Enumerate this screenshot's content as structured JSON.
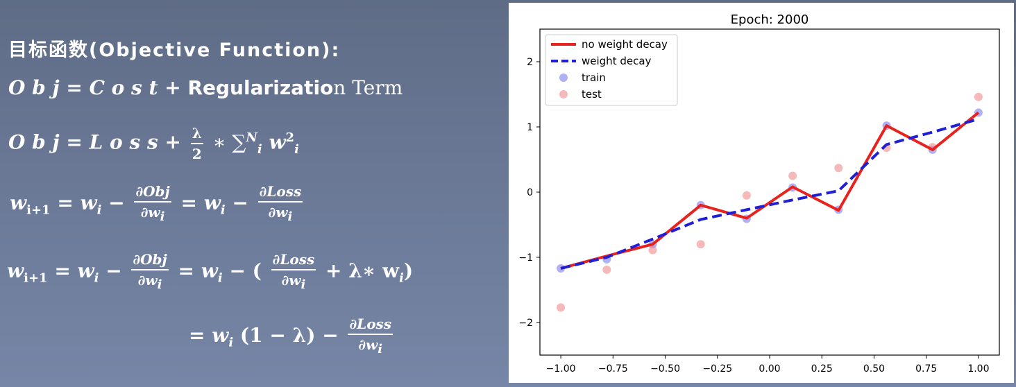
{
  "slide": {
    "title": "目标函数(Objective Function):",
    "eq1": {
      "lhs": "O b j",
      "op1": "=",
      "cost": "C o s t",
      "plus": "+",
      "reg": "Regularizatio",
      "tail": "n Term"
    },
    "eq2": {
      "lhs": "O b j",
      "op1": "=",
      "loss": "L o s s",
      "plus": "+",
      "frac_num": "λ",
      "frac_den": "2",
      "rest": "∗ ∑",
      "sum_sup": "N",
      "sum_sub": "i",
      "w": "w",
      "w_sup": "2",
      "w_sub": "i"
    },
    "eq3": {
      "w": "w",
      "sub_lhs": "i+1",
      "eq": "=",
      "wi": "w",
      "sub_i": "i",
      "minus": "−",
      "num1": "∂Obj",
      "den1": "∂w",
      "den_sub": "i",
      "eq2": "=",
      "minus2": "−",
      "num2": "∂Loss",
      "den2": "∂w"
    },
    "eq4": {
      "w": "w",
      "sub_lhs": "i+1",
      "eq": "=",
      "wi": "w",
      "sub_i": "i",
      "minus": "−",
      "num1": "∂Obj",
      "den1": "∂w",
      "den_sub": "i",
      "eq2": "=",
      "minus2": "− (",
      "num2": "∂Loss",
      "den2": "∂w",
      "tail": "+ λ∗ w",
      "close": ")"
    },
    "eq5": {
      "eq": "=",
      "w": "w",
      "sub_i": "i",
      "paren": "(1 − λ) −",
      "num": "∂Loss",
      "den": "∂w"
    }
  },
  "chart_data": {
    "type": "line",
    "title": "Epoch: 2000",
    "xlabel": "",
    "ylabel": "",
    "xlim": [
      -1.1,
      1.1
    ],
    "ylim": [
      -2.5,
      2.5
    ],
    "xticks": [
      "−1.00",
      "−0.75",
      "−0.50",
      "−0.25",
      "0.00",
      "0.25",
      "0.50",
      "0.75",
      "1.00"
    ],
    "xtick_values": [
      -1.0,
      -0.75,
      -0.5,
      -0.25,
      0.0,
      0.25,
      0.5,
      0.75,
      1.0
    ],
    "yticks": [
      "−2",
      "−1",
      "0",
      "1",
      "2"
    ],
    "ytick_values": [
      -2,
      -1,
      0,
      1,
      2
    ],
    "grid": false,
    "legend_position": "top-left",
    "series": [
      {
        "name": "no weight decay",
        "kind": "line",
        "color": "#e8231e",
        "x": [
          -1.0,
          -0.78,
          -0.56,
          -0.33,
          -0.11,
          0.11,
          0.33,
          0.56,
          0.78,
          1.0
        ],
        "y": [
          -1.17,
          -0.98,
          -0.8,
          -0.2,
          -0.4,
          0.08,
          -0.28,
          1.02,
          0.65,
          1.22
        ]
      },
      {
        "name": "weight decay",
        "kind": "dashed",
        "color": "#1f1fd6",
        "x": [
          -1.0,
          -0.78,
          -0.56,
          -0.33,
          -0.11,
          0.11,
          0.33,
          0.56,
          0.78,
          1.0
        ],
        "y": [
          -1.17,
          -1.0,
          -0.72,
          -0.42,
          -0.27,
          -0.12,
          0.02,
          0.73,
          0.92,
          1.12
        ]
      },
      {
        "name": "train",
        "kind": "scatter",
        "color": "#7b7bef",
        "x": [
          -1.0,
          -0.78,
          -0.56,
          -0.33,
          -0.11,
          0.11,
          0.33,
          0.56,
          0.78,
          1.0
        ],
        "y": [
          -1.17,
          -1.03,
          -0.8,
          -0.2,
          -0.41,
          0.07,
          -0.27,
          1.02,
          0.65,
          1.22
        ]
      },
      {
        "name": "test",
        "kind": "scatter",
        "color": "#ef8a8a",
        "x": [
          -1.0,
          -0.78,
          -0.56,
          -0.33,
          -0.11,
          0.11,
          0.33,
          0.56,
          0.78,
          1.0
        ],
        "y": [
          -1.77,
          -1.19,
          -0.89,
          -0.8,
          -0.05,
          0.25,
          0.37,
          0.68,
          0.69,
          1.46
        ]
      }
    ]
  }
}
